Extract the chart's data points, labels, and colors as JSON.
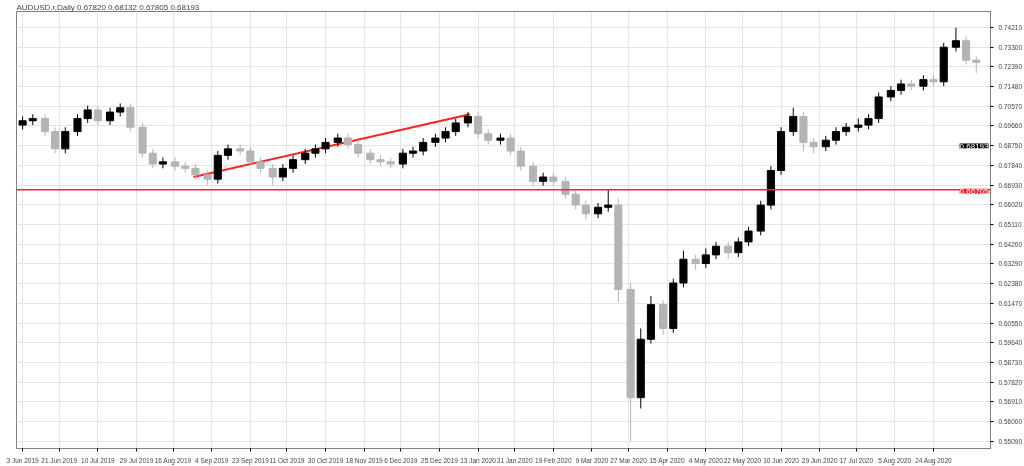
{
  "chart_data": {
    "type": "candlestick",
    "title": "AUDUSD.r,Daily  0.67820 0.68132 0.67805 0.68193",
    "x": [
      "2019-06-03",
      "2019-06-08",
      "2019-06-14",
      "2019-06-19",
      "2019-06-24",
      "2019-06-30",
      "2019-07-05",
      "2019-07-10",
      "2019-07-16",
      "2019-07-21",
      "2019-07-26",
      "2019-08-01",
      "2019-08-06",
      "2019-08-11",
      "2019-08-17",
      "2019-08-22",
      "2019-08-27",
      "2019-09-02",
      "2019-09-07",
      "2019-09-12",
      "2019-09-18",
      "2019-09-23",
      "2019-09-28",
      "2019-10-04",
      "2019-10-09",
      "2019-10-14",
      "2019-10-20",
      "2019-10-25",
      "2019-10-30",
      "2019-11-05",
      "2019-11-10",
      "2019-11-15",
      "2019-11-21",
      "2019-11-26",
      "2019-12-01",
      "2019-12-07",
      "2019-12-12",
      "2019-12-17",
      "2019-12-23",
      "2019-12-28",
      "2020-01-02",
      "2020-01-08",
      "2020-01-13",
      "2020-01-18",
      "2020-01-24",
      "2020-01-29",
      "2020-02-03",
      "2020-02-09",
      "2020-02-14",
      "2020-02-19",
      "2020-02-25",
      "2020-03-01",
      "2020-03-06",
      "2020-03-12",
      "2020-03-17",
      "2020-03-22",
      "2020-03-28",
      "2020-04-02",
      "2020-04-07",
      "2020-04-13",
      "2020-04-18",
      "2020-04-23",
      "2020-04-29",
      "2020-05-04",
      "2020-05-09",
      "2020-05-15",
      "2020-05-20",
      "2020-05-25",
      "2020-05-31",
      "2020-06-05",
      "2020-06-10",
      "2020-06-16",
      "2020-06-21",
      "2020-06-26",
      "2020-07-02",
      "2020-07-07",
      "2020-07-12",
      "2020-07-18",
      "2020-07-23",
      "2020-07-28",
      "2020-08-03",
      "2020-08-08",
      "2020-08-13",
      "2020-08-19",
      "2020-08-24",
      "2020-08-29",
      "2020-09-04",
      "2020-09-09",
      "2020-09-14"
    ],
    "ohlc": [
      [
        0.697,
        0.701,
        0.695,
        0.699
      ],
      [
        0.699,
        0.702,
        0.697,
        0.7
      ],
      [
        0.7,
        0.702,
        0.692,
        0.694
      ],
      [
        0.694,
        0.696,
        0.684,
        0.686
      ],
      [
        0.686,
        0.696,
        0.684,
        0.694
      ],
      [
        0.694,
        0.702,
        0.692,
        0.7
      ],
      [
        0.7,
        0.706,
        0.698,
        0.704
      ],
      [
        0.704,
        0.706,
        0.697,
        0.699
      ],
      [
        0.699,
        0.705,
        0.697,
        0.703
      ],
      [
        0.703,
        0.707,
        0.701,
        0.705
      ],
      [
        0.705,
        0.707,
        0.694,
        0.696
      ],
      [
        0.696,
        0.698,
        0.682,
        0.684
      ],
      [
        0.684,
        0.686,
        0.677,
        0.679
      ],
      [
        0.679,
        0.682,
        0.677,
        0.68
      ],
      [
        0.68,
        0.682,
        0.676,
        0.678
      ],
      [
        0.678,
        0.68,
        0.675,
        0.677
      ],
      [
        0.677,
        0.679,
        0.672,
        0.674
      ],
      [
        0.674,
        0.676,
        0.669,
        0.672
      ],
      [
        0.672,
        0.685,
        0.67,
        0.683
      ],
      [
        0.683,
        0.688,
        0.681,
        0.686
      ],
      [
        0.686,
        0.688,
        0.683,
        0.685
      ],
      [
        0.685,
        0.687,
        0.678,
        0.68
      ],
      [
        0.68,
        0.682,
        0.675,
        0.677
      ],
      [
        0.677,
        0.679,
        0.669,
        0.673
      ],
      [
        0.673,
        0.679,
        0.671,
        0.677
      ],
      [
        0.677,
        0.683,
        0.675,
        0.681
      ],
      [
        0.681,
        0.686,
        0.679,
        0.684
      ],
      [
        0.684,
        0.688,
        0.682,
        0.686
      ],
      [
        0.686,
        0.691,
        0.684,
        0.689
      ],
      [
        0.689,
        0.693,
        0.687,
        0.691
      ],
      [
        0.691,
        0.693,
        0.686,
        0.688
      ],
      [
        0.688,
        0.69,
        0.682,
        0.684
      ],
      [
        0.684,
        0.686,
        0.679,
        0.681
      ],
      [
        0.681,
        0.683,
        0.678,
        0.68
      ],
      [
        0.68,
        0.682,
        0.677,
        0.679
      ],
      [
        0.679,
        0.686,
        0.677,
        0.684
      ],
      [
        0.684,
        0.687,
        0.682,
        0.685
      ],
      [
        0.685,
        0.691,
        0.683,
        0.689
      ],
      [
        0.689,
        0.693,
        0.687,
        0.691
      ],
      [
        0.691,
        0.696,
        0.689,
        0.694
      ],
      [
        0.694,
        0.7,
        0.692,
        0.698
      ],
      [
        0.698,
        0.703,
        0.696,
        0.701
      ],
      [
        0.701,
        0.703,
        0.691,
        0.693
      ],
      [
        0.693,
        0.695,
        0.688,
        0.69
      ],
      [
        0.69,
        0.693,
        0.688,
        0.691
      ],
      [
        0.691,
        0.693,
        0.683,
        0.685
      ],
      [
        0.685,
        0.687,
        0.676,
        0.678
      ],
      [
        0.678,
        0.68,
        0.669,
        0.671
      ],
      [
        0.671,
        0.675,
        0.669,
        0.673
      ],
      [
        0.673,
        0.675,
        0.669,
        0.671
      ],
      [
        0.671,
        0.673,
        0.663,
        0.665
      ],
      [
        0.665,
        0.667,
        0.658,
        0.66
      ],
      [
        0.66,
        0.662,
        0.653,
        0.656
      ],
      [
        0.656,
        0.661,
        0.654,
        0.659
      ],
      [
        0.659,
        0.667,
        0.657,
        0.66
      ],
      [
        0.66,
        0.663,
        0.615,
        0.621
      ],
      [
        0.621,
        0.624,
        0.551,
        0.571
      ],
      [
        0.571,
        0.603,
        0.566,
        0.598
      ],
      [
        0.598,
        0.618,
        0.596,
        0.614
      ],
      [
        0.614,
        0.616,
        0.6,
        0.603
      ],
      [
        0.603,
        0.626,
        0.601,
        0.624
      ],
      [
        0.624,
        0.639,
        0.622,
        0.635
      ],
      [
        0.635,
        0.637,
        0.63,
        0.633
      ],
      [
        0.633,
        0.64,
        0.631,
        0.637
      ],
      [
        0.637,
        0.643,
        0.635,
        0.641
      ],
      [
        0.641,
        0.643,
        0.635,
        0.638
      ],
      [
        0.638,
        0.645,
        0.636,
        0.643
      ],
      [
        0.643,
        0.65,
        0.641,
        0.648
      ],
      [
        0.648,
        0.662,
        0.646,
        0.66
      ],
      [
        0.66,
        0.678,
        0.658,
        0.676
      ],
      [
        0.676,
        0.696,
        0.674,
        0.694
      ],
      [
        0.694,
        0.705,
        0.692,
        0.701
      ],
      [
        0.701,
        0.703,
        0.685,
        0.689
      ],
      [
        0.689,
        0.691,
        0.684,
        0.687
      ],
      [
        0.687,
        0.692,
        0.685,
        0.69
      ],
      [
        0.69,
        0.696,
        0.688,
        0.694
      ],
      [
        0.694,
        0.698,
        0.692,
        0.696
      ],
      [
        0.696,
        0.7,
        0.694,
        0.697
      ],
      [
        0.697,
        0.702,
        0.695,
        0.7
      ],
      [
        0.7,
        0.712,
        0.698,
        0.71
      ],
      [
        0.71,
        0.715,
        0.708,
        0.713
      ],
      [
        0.713,
        0.718,
        0.711,
        0.716
      ],
      [
        0.716,
        0.718,
        0.713,
        0.715
      ],
      [
        0.715,
        0.72,
        0.713,
        0.718
      ],
      [
        0.718,
        0.72,
        0.715,
        0.717
      ],
      [
        0.717,
        0.735,
        0.715,
        0.733
      ],
      [
        0.733,
        0.742,
        0.731,
        0.736
      ],
      [
        0.736,
        0.738,
        0.725,
        0.727
      ],
      [
        0.727,
        0.729,
        0.721,
        0.726
      ]
    ],
    "colors": [
      "#000000",
      "#000000",
      "#b4b4b4",
      "#b4b4b4",
      "#000000",
      "#000000",
      "#000000",
      "#b4b4b4",
      "#000000",
      "#000000",
      "#b4b4b4",
      "#b4b4b4",
      "#b4b4b4",
      "#000000",
      "#b4b4b4",
      "#b4b4b4",
      "#b4b4b4",
      "#b4b4b4",
      "#000000",
      "#000000",
      "#b4b4b4",
      "#b4b4b4",
      "#b4b4b4",
      "#b4b4b4",
      "#000000",
      "#000000",
      "#000000",
      "#000000",
      "#000000",
      "#000000",
      "#b4b4b4",
      "#b4b4b4",
      "#b4b4b4",
      "#b4b4b4",
      "#b4b4b4",
      "#000000",
      "#000000",
      "#000000",
      "#000000",
      "#000000",
      "#000000",
      "#000000",
      "#b4b4b4",
      "#b4b4b4",
      "#000000",
      "#b4b4b4",
      "#b4b4b4",
      "#b4b4b4",
      "#000000",
      "#b4b4b4",
      "#b4b4b4",
      "#b4b4b4",
      "#b4b4b4",
      "#000000",
      "#000000",
      "#b4b4b4",
      "#b4b4b4",
      "#000000",
      "#000000",
      "#b4b4b4",
      "#000000",
      "#000000",
      "#b4b4b4",
      "#000000",
      "#000000",
      "#b4b4b4",
      "#000000",
      "#000000",
      "#000000",
      "#000000",
      "#000000",
      "#000000",
      "#b4b4b4",
      "#b4b4b4",
      "#000000",
      "#000000",
      "#000000",
      "#000000",
      "#000000",
      "#000000",
      "#000000",
      "#000000",
      "#b4b4b4",
      "#000000",
      "#b4b4b4",
      "#000000",
      "#000000",
      "#b4b4b4",
      "#b4b4b4"
    ],
    "series": [
      {
        "type": "line",
        "color": "#ff2020",
        "x": [
          "2019-08-26",
          "2020-01-09"
        ],
        "values": [
          0.673,
          0.702
        ]
      }
    ],
    "xlim": [
      "2019-05-31",
      "2020-09-21"
    ],
    "ylim": [
      0.5475,
      0.7495
    ],
    "xticks": [
      {
        "value": "2019-06-03",
        "label": "3 Jun 2019"
      },
      {
        "value": "2019-06-21",
        "label": "21 Jun 2019"
      },
      {
        "value": "2019-07-10",
        "label": "10 Jul 2019"
      },
      {
        "value": "2019-07-29",
        "label": "29 Jul 2019"
      },
      {
        "value": "2019-08-16",
        "label": "16 Aug 2019"
      },
      {
        "value": "2019-09-04",
        "label": "4 Sep 2019"
      },
      {
        "value": "2019-09-23",
        "label": "23 Sep 2019"
      },
      {
        "value": "2019-10-11",
        "label": "11 Oct 2019"
      },
      {
        "value": "2019-10-30",
        "label": "30 Oct 2019"
      },
      {
        "value": "2019-11-18",
        "label": "18 Nov 2019"
      },
      {
        "value": "2019-12-06",
        "label": "6 Dec 2019"
      },
      {
        "value": "2019-12-25",
        "label": "25 Dec 2019"
      },
      {
        "value": "2020-01-13",
        "label": "13 Jan 2020"
      },
      {
        "value": "2020-01-31",
        "label": "31 Jan 2020"
      },
      {
        "value": "2020-02-19",
        "label": "19 Feb 2020"
      },
      {
        "value": "2020-03-09",
        "label": "9 Mar 2020"
      },
      {
        "value": "2020-03-27",
        "label": "27 Mar 2020"
      },
      {
        "value": "2020-04-15",
        "label": "15 Apr 2020"
      },
      {
        "value": "2020-05-04",
        "label": "4 May 2020"
      },
      {
        "value": "2020-05-22",
        "label": "22 May 2020"
      },
      {
        "value": "2020-06-10",
        "label": "10 Jun 2020"
      },
      {
        "value": "2020-06-29",
        "label": "29 Jun 2020"
      },
      {
        "value": "2020-07-17",
        "label": "17 Jul 2020"
      },
      {
        "value": "2020-08-05",
        "label": "5 Aug 2020"
      },
      {
        "value": "2020-08-24",
        "label": "24 Aug 2020"
      }
    ],
    "yticks": [
      {
        "value": 0.7421,
        "label": "0.74210"
      },
      {
        "value": 0.733,
        "label": "0.73300"
      },
      {
        "value": 0.7239,
        "label": "0.72390"
      },
      {
        "value": 0.7148,
        "label": "0.71480"
      },
      {
        "value": 0.7057,
        "label": "0.70570"
      },
      {
        "value": 0.6966,
        "label": "0.69660"
      },
      {
        "value": 0.6875,
        "label": "0.68750"
      },
      {
        "value": 0.6784,
        "label": "0.67840"
      },
      {
        "value": 0.6693,
        "label": "0.66930"
      },
      {
        "value": 0.6602,
        "label": "0.66020"
      },
      {
        "value": 0.6511,
        "label": "0.65110"
      },
      {
        "value": 0.642,
        "label": "0.64200"
      },
      {
        "value": 0.6329,
        "label": "0.63290"
      },
      {
        "value": 0.6238,
        "label": "0.62380"
      },
      {
        "value": 0.6147,
        "label": "0.61470"
      },
      {
        "value": 0.6055,
        "label": "0.60550"
      },
      {
        "value": 0.5964,
        "label": "0.59640"
      },
      {
        "value": 0.5873,
        "label": "0.58730"
      },
      {
        "value": 0.5782,
        "label": "0.57820"
      },
      {
        "value": 0.5691,
        "label": "0.56910"
      },
      {
        "value": 0.56,
        "label": "0.56000"
      },
      {
        "value": 0.5509,
        "label": "0.55090"
      }
    ],
    "ref_lines": [
      {
        "axis": "y",
        "value": 0.66705,
        "label": "0.66705",
        "color": "#ff2020"
      }
    ],
    "annotations": [
      "0.68193"
    ],
    "grid": true
  }
}
